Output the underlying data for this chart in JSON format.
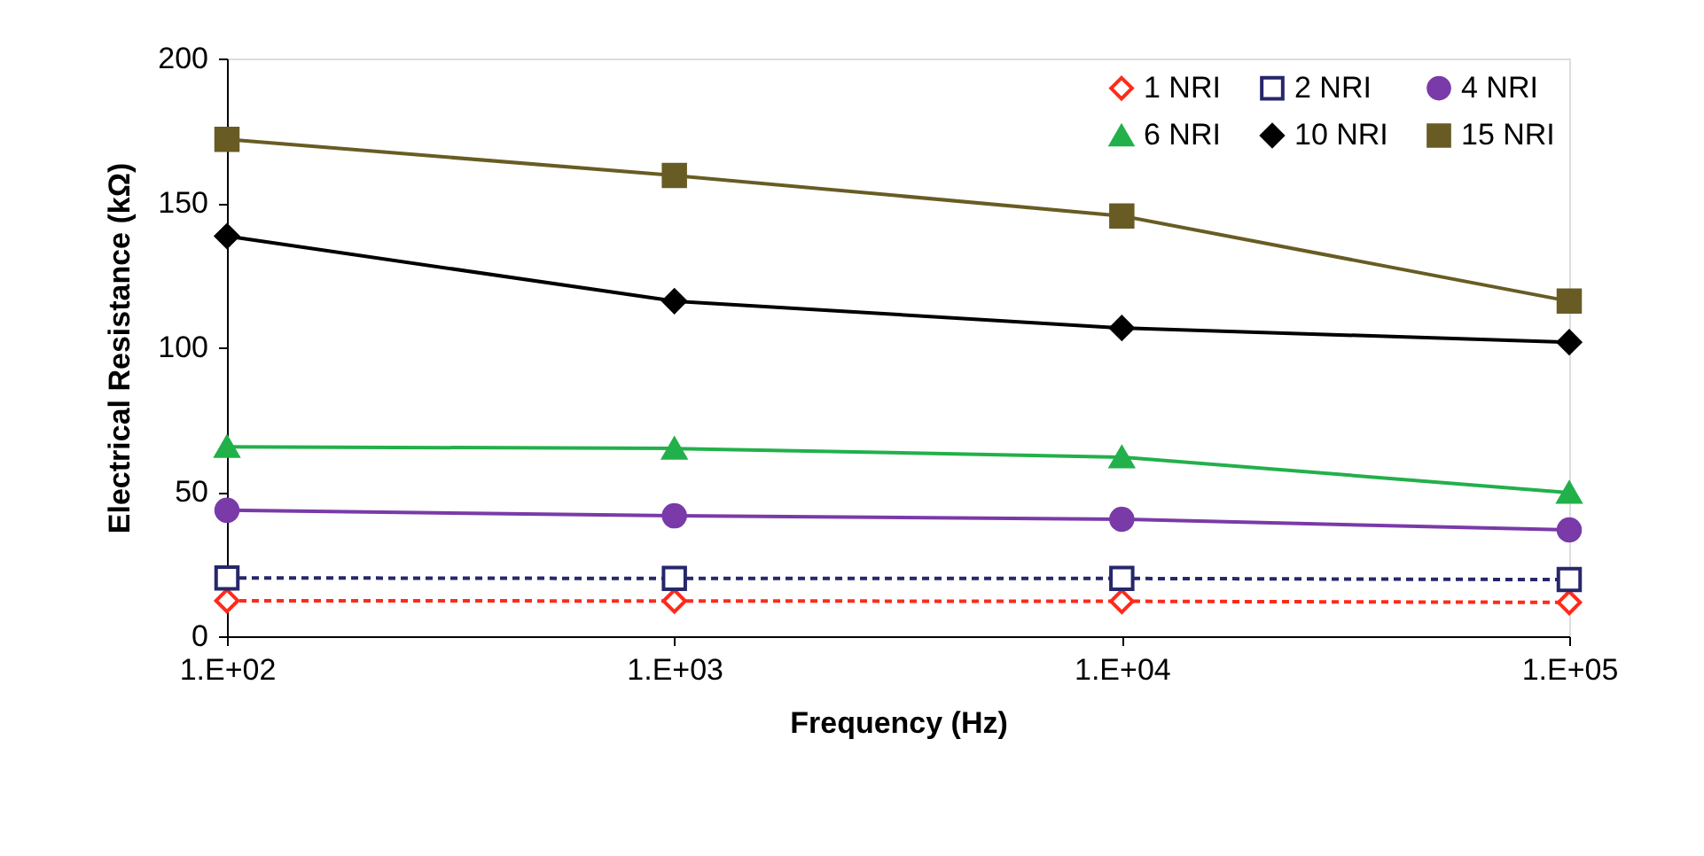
{
  "chart_data": {
    "type": "line",
    "xlabel": "Frequency (Hz)",
    "ylabel": "Electrical Resistance (kΩ)",
    "categories": [
      "1.E+02",
      "1.E+03",
      "1.E+04",
      "1.E+05"
    ],
    "ylim": [
      0,
      200
    ],
    "yticks": [
      0,
      50,
      100,
      150,
      200
    ],
    "grid": false,
    "legend": "top right",
    "series": [
      {
        "name": "1 NRI",
        "color": "#ff2a1a",
        "marker": "diamond",
        "line_style": "dashed",
        "values": [
          12.3,
          12.2,
          12.1,
          11.7
        ]
      },
      {
        "name": "2 NRI",
        "color": "#27276b",
        "marker": "square",
        "line_style": "dashed",
        "values": [
          20.2,
          20,
          20,
          19.6
        ]
      },
      {
        "name": "4 NRI",
        "color": "#7a3aa8",
        "marker": "circle",
        "line_style": "solid",
        "values": [
          43.6,
          41.7,
          40.5,
          36.8
        ]
      },
      {
        "name": "6 NRI",
        "color": "#22b04a",
        "marker": "triangle",
        "line_style": "solid",
        "values": [
          65.6,
          65,
          62,
          49.7
        ]
      },
      {
        "name": "10 NRI",
        "color": "#000000",
        "marker": "diamond",
        "line_style": "solid",
        "values": [
          138.5,
          116,
          106.7,
          101.8
        ]
      },
      {
        "name": "15 NRI",
        "color": "#685c24",
        "marker": "square",
        "line_style": "solid",
        "values": [
          172,
          159.5,
          145.5,
          116
        ]
      }
    ]
  }
}
